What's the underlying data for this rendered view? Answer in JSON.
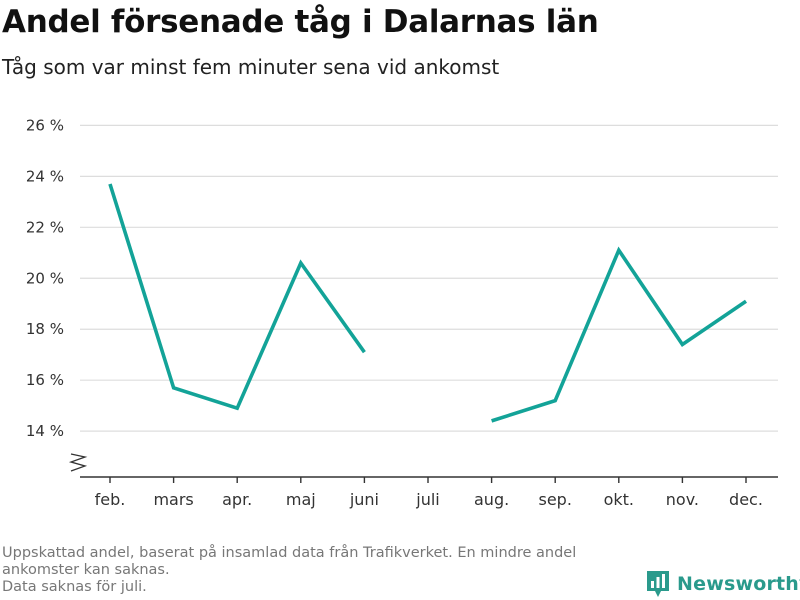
{
  "header": {
    "title": "Andel försenade tåg i Dalarnas län",
    "subtitle": "Tåg som var minst fem minuter sena vid ankomst"
  },
  "chart_data": {
    "type": "line",
    "title": "Andel försenade tåg i Dalarnas län",
    "subtitle": "Tåg som var minst fem minuter sena vid ankomst",
    "xlabel": "",
    "ylabel": "",
    "categories": [
      "feb.",
      "mars",
      "apr.",
      "maj",
      "juni",
      "juli",
      "aug.",
      "sep.",
      "okt.",
      "nov.",
      "dec."
    ],
    "series": [
      {
        "values": [
          23.7,
          15.7,
          14.9,
          20.6,
          17.1,
          null,
          14.4,
          15.2,
          21.1,
          17.4,
          19.1
        ]
      }
    ],
    "ylim": [
      12.2,
      26.8
    ],
    "yticks": [
      14,
      16,
      18,
      20,
      22,
      24,
      26
    ],
    "ytick_suffix": " %",
    "axis_break": true,
    "grid": true,
    "line_color": "#13a398"
  },
  "footer": {
    "note_line1": "Uppskattad andel, baserat på insamlad data från Trafikverket. En mindre andel ankomster kan saknas.",
    "note_line2": "Data saknas för juli.",
    "brand": "Newsworthy",
    "brand_color": "#2a9a8c"
  }
}
